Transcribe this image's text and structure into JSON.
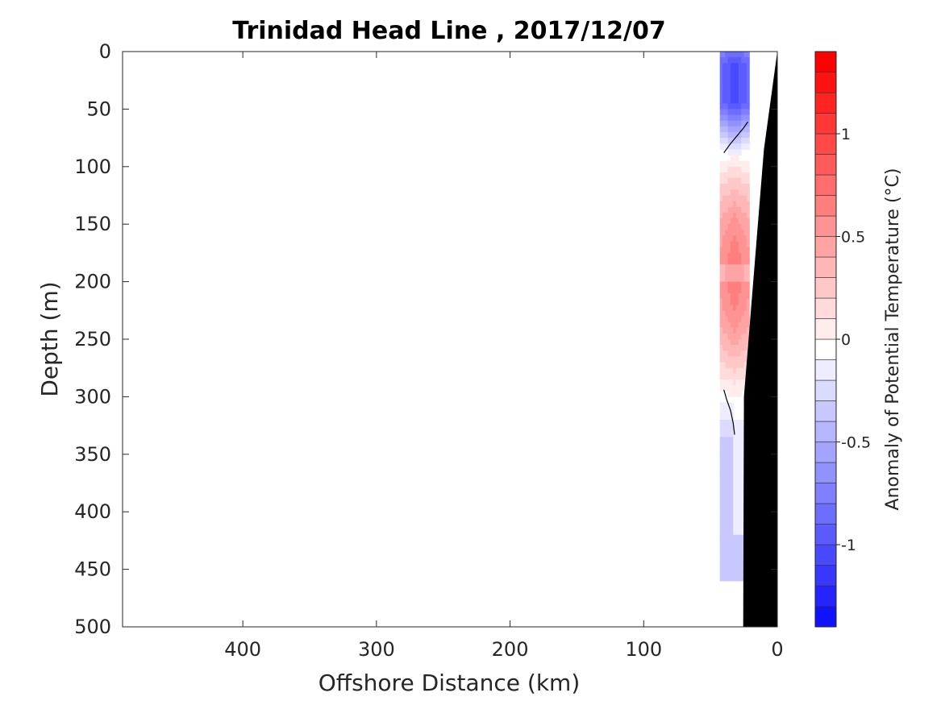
{
  "chart_data": {
    "type": "heatmap",
    "title": "Trinidad Head Line , 2017/12/07",
    "xlabel": "Offshore Distance (km)",
    "ylabel": "Depth (m)",
    "xlim": [
      490,
      0
    ],
    "ylim": [
      0,
      500
    ],
    "x_reversed": true,
    "y_reversed": true,
    "xticks": [
      400,
      300,
      200,
      100,
      0
    ],
    "yticks": [
      0,
      50,
      100,
      150,
      200,
      250,
      300,
      350,
      400,
      450,
      500
    ],
    "grid": false,
    "colorbar": {
      "label": "Anomaly of Potential Temperature (°C)",
      "range": [
        -1.4,
        1.4
      ],
      "step": 0.1,
      "ticks": [
        -1,
        -0.5,
        0,
        0.5,
        1
      ],
      "low_color": "#0000ff",
      "mid_color": "#ffffff",
      "high_color": "#ff0000"
    },
    "section_profile": {
      "x_range_km": [
        43,
        22
      ],
      "depth_ranges_m": [
        [
          0,
          90
        ],
        [
          90,
          300
        ],
        [
          300,
          460
        ]
      ],
      "anomaly_sign": [
        "negative",
        "positive",
        "negative"
      ],
      "peak_anomaly": [
        -1.0,
        0.8,
        -0.3
      ]
    },
    "zero_contours": [
      {
        "x": [
          40,
          35,
          30,
          25,
          22
        ],
        "depth": [
          88,
          80,
          73,
          66,
          61
        ]
      },
      {
        "x": [
          40,
          38,
          35,
          33,
          32
        ],
        "depth": [
          294,
          302,
          312,
          323,
          333
        ]
      }
    ],
    "bathymetry": {
      "color": "#000000",
      "x": [
        0,
        10,
        25,
        25.5
      ],
      "depth": [
        0,
        85,
        300,
        500
      ]
    }
  }
}
